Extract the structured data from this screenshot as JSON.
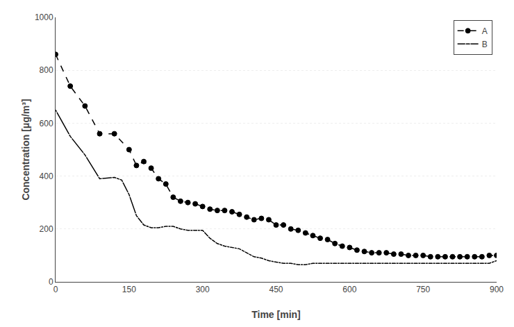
{
  "chart_data": {
    "type": "line",
    "x_label": "Time [min]",
    "y_label": "Concentration [μg/m³]",
    "xlim": [
      0,
      900
    ],
    "ylim": [
      0,
      1000
    ],
    "xticks": [
      0,
      150,
      300,
      450,
      600,
      750,
      900
    ],
    "yticks": [
      0,
      200,
      400,
      600,
      800,
      1000
    ],
    "grid": "y",
    "legend": "upper right",
    "series": [
      {
        "name": "A",
        "color": "#000000",
        "marker": "circle",
        "line_style": "dashed",
        "x": [
          0,
          30,
          60,
          90,
          120,
          150,
          165,
          180,
          195,
          210,
          225,
          240,
          255,
          270,
          285,
          300,
          315,
          330,
          345,
          360,
          375,
          390,
          405,
          420,
          435,
          450,
          465,
          480,
          495,
          510,
          525,
          540,
          555,
          570,
          585,
          600,
          615,
          630,
          645,
          660,
          675,
          690,
          705,
          720,
          735,
          750,
          765,
          780,
          795,
          810,
          825,
          840,
          855,
          870,
          885,
          900
        ],
        "values": [
          860,
          740,
          665,
          560,
          560,
          500,
          440,
          455,
          430,
          390,
          370,
          320,
          305,
          300,
          295,
          285,
          275,
          270,
          270,
          265,
          255,
          245,
          235,
          240,
          235,
          215,
          215,
          200,
          195,
          185,
          175,
          165,
          160,
          145,
          135,
          130,
          120,
          115,
          110,
          110,
          110,
          105,
          105,
          100,
          100,
          100,
          95,
          95,
          95,
          95,
          95,
          95,
          95,
          95,
          100,
          100
        ]
      },
      {
        "name": "B",
        "color": "#000000",
        "marker": "circle-open",
        "line_style": "solid",
        "x": [
          0,
          30,
          60,
          90,
          120,
          135,
          150,
          165,
          180,
          195,
          210,
          225,
          240,
          255,
          270,
          285,
          300,
          315,
          330,
          345,
          360,
          375,
          390,
          405,
          420,
          435,
          450,
          465,
          480,
          495,
          510,
          525,
          540,
          555,
          570,
          585,
          600,
          615,
          630,
          645,
          660,
          675,
          690,
          705,
          720,
          735,
          750,
          765,
          780,
          795,
          810,
          825,
          840,
          855,
          870,
          885,
          900
        ],
        "values": [
          650,
          550,
          480,
          390,
          395,
          385,
          330,
          250,
          215,
          205,
          205,
          210,
          210,
          200,
          195,
          195,
          195,
          165,
          145,
          135,
          130,
          125,
          110,
          95,
          90,
          80,
          75,
          70,
          70,
          65,
          65,
          70,
          70,
          70,
          70,
          70,
          70,
          70,
          70,
          70,
          70,
          70,
          70,
          70,
          70,
          70,
          70,
          70,
          70,
          70,
          70,
          70,
          70,
          70,
          70,
          70,
          80
        ]
      }
    ]
  }
}
